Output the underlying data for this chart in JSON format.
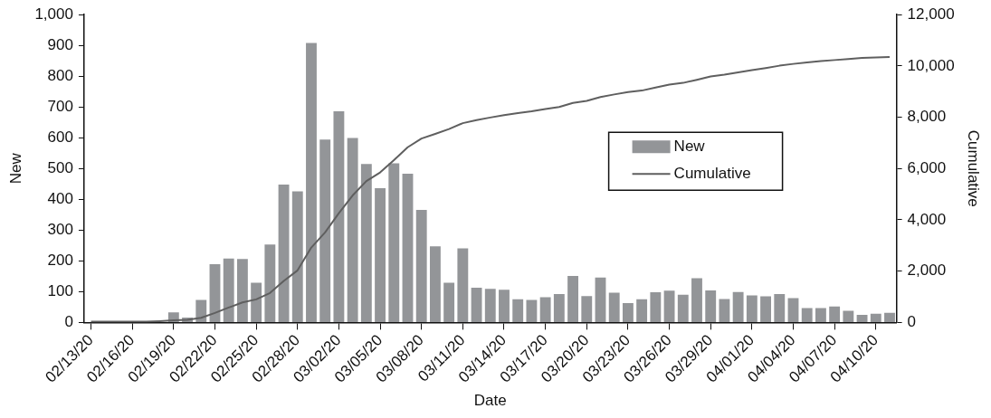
{
  "chart_data": {
    "type": "bar",
    "xlabel": "Date",
    "ylabel": "New",
    "y2label": "Cumulative",
    "categories": [
      "02/13/20",
      null,
      null,
      "02/16/20",
      null,
      null,
      "02/19/20",
      null,
      null,
      "02/22/20",
      null,
      null,
      "02/25/20",
      null,
      null,
      "02/28/20",
      null,
      null,
      "03/02/20",
      null,
      null,
      "03/05/20",
      null,
      null,
      "03/08/20",
      null,
      null,
      "03/11/20",
      null,
      null,
      "03/14/20",
      null,
      null,
      "03/17/20",
      null,
      null,
      "03/20/20",
      null,
      null,
      "03/23/20",
      null,
      null,
      "03/26/20",
      null,
      null,
      "03/29/20",
      null,
      null,
      "04/01/20",
      null,
      null,
      "04/04/20",
      null,
      null,
      "04/07/20",
      null,
      null,
      "04/10/20",
      null
    ],
    "series": [
      {
        "name": "New",
        "color": "#939598",
        "values": [
          0,
          0,
          0,
          0,
          0,
          0,
          33,
          16,
          73,
          189,
          208,
          206,
          129,
          253,
          448,
          426,
          908,
          594,
          686,
          599,
          515,
          436,
          517,
          483,
          366,
          247,
          129,
          241,
          113,
          109,
          106,
          75,
          73,
          82,
          92,
          151,
          86,
          146,
          97,
          63,
          75,
          98,
          103,
          90,
          144,
          104,
          76,
          99,
          88,
          85,
          92,
          79,
          47,
          47,
          52,
          38,
          25,
          28,
          31
        ]
      },
      {
        "name": "Cumulative",
        "type": "line",
        "axis": "y2",
        "color": "#5f5f5f",
        "values": [
          30,
          30,
          30,
          30,
          30,
          50,
          80,
          100,
          180,
          370,
          580,
          780,
          900,
          1150,
          1620,
          2030,
          2920,
          3510,
          4260,
          4950,
          5510,
          5850,
          6330,
          6830,
          7170,
          7350,
          7540,
          7770,
          7890,
          7990,
          8080,
          8160,
          8230,
          8320,
          8400,
          8560,
          8640,
          8790,
          8890,
          8980,
          9040,
          9160,
          9270,
          9340,
          9460,
          9590,
          9660,
          9750,
          9840,
          9920,
          10010,
          10080,
          10140,
          10190,
          10230,
          10270,
          10310,
          10330,
          10350
        ]
      }
    ],
    "ylim": [
      0,
      1000
    ],
    "yticks": [
      0,
      100,
      200,
      300,
      400,
      500,
      600,
      700,
      800,
      900,
      {
        "value": 1000,
        "label": "1,000"
      }
    ],
    "y2lim": [
      0,
      12000
    ],
    "y2ticks": [
      0,
      {
        "value": 2000,
        "label": "2,000"
      },
      {
        "value": 4000,
        "label": "4,000"
      },
      {
        "value": 6000,
        "label": "6,000"
      },
      {
        "value": 8000,
        "label": "8,000"
      },
      {
        "value": 10000,
        "label": "10,000"
      },
      {
        "value": 12000,
        "label": "12,000"
      }
    ],
    "legend": "right"
  }
}
